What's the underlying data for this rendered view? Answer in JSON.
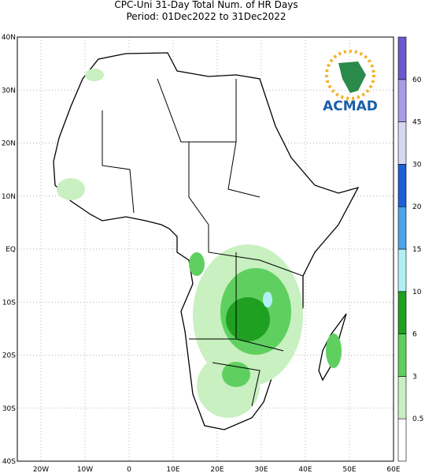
{
  "header": {
    "title": "CPC-Uni 31-Day Total Num. of HR Days",
    "subtitle": "Period: 01Dec2022 to 31Dec2022"
  },
  "map": {
    "lat_labels": [
      "40N",
      "30N",
      "20N",
      "10N",
      "EQ",
      "10S",
      "20S",
      "30S",
      "40S"
    ],
    "lon_labels": [
      "20W",
      "10W",
      "0",
      "10E",
      "20E",
      "30E",
      "40E",
      "50E",
      "60E"
    ]
  },
  "logo": {
    "text": "ACMAD"
  },
  "colorbar": {
    "ticks": [
      0.5,
      3,
      6,
      10,
      15,
      20,
      30,
      45,
      60
    ],
    "colors": [
      "#ffffff",
      "#c8f0c0",
      "#5fd05f",
      "#20a020",
      "#b0f0f5",
      "#4da3e8",
      "#1f5fd8",
      "#d6d8f0",
      "#a89be8",
      "#6a5ad0"
    ]
  }
}
